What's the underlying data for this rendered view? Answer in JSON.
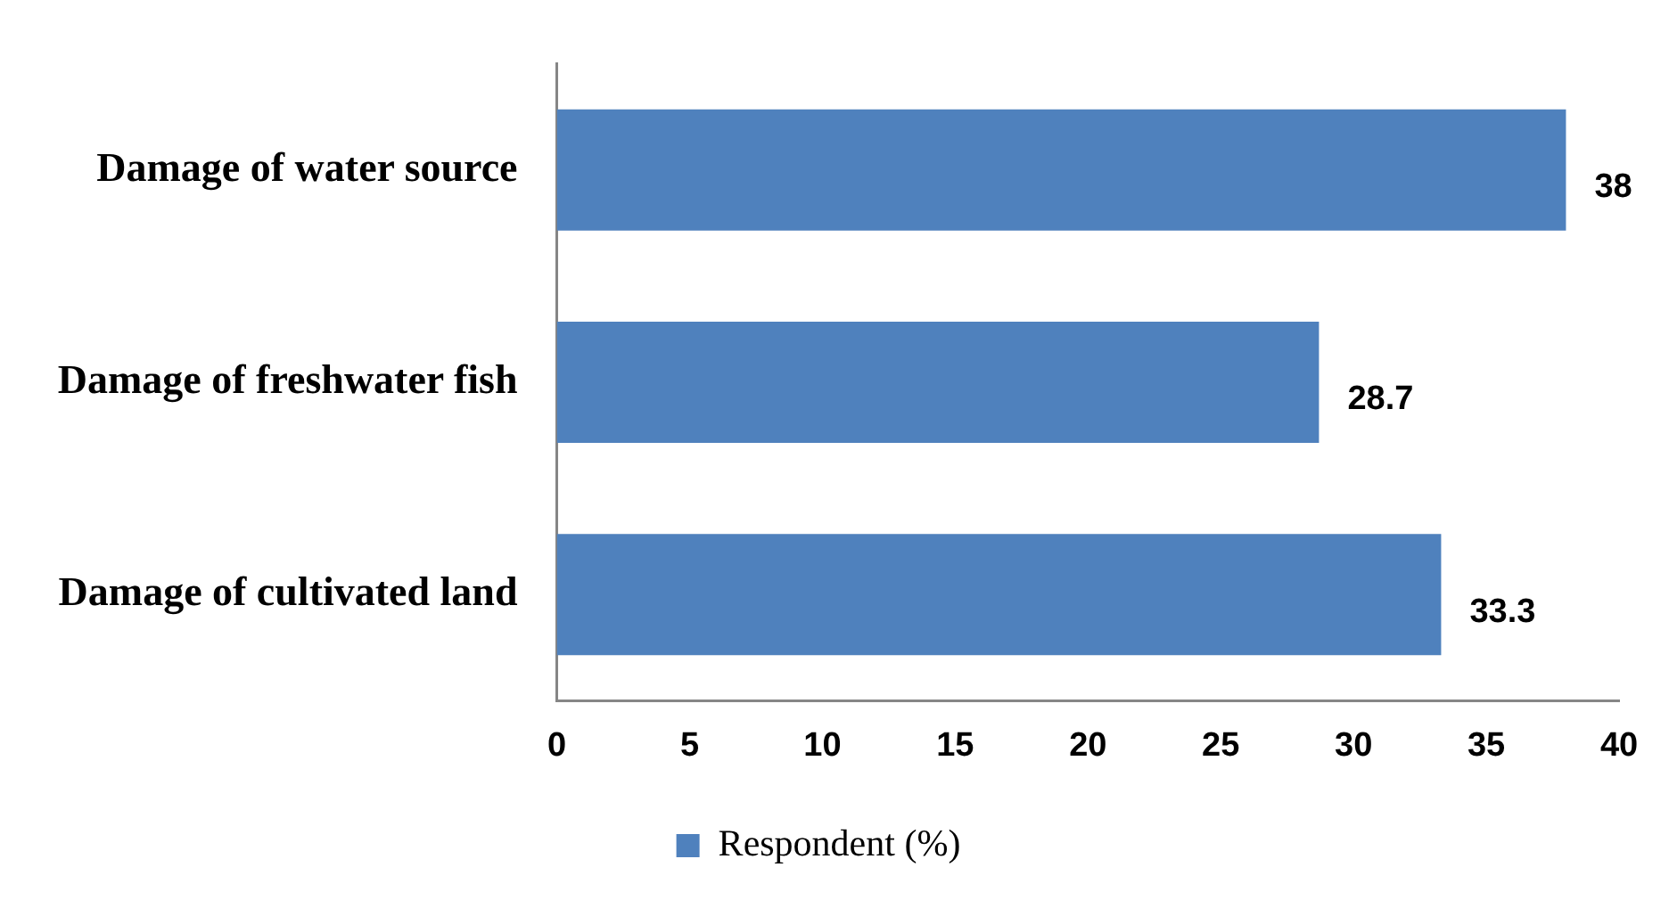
{
  "chart_data": {
    "type": "bar",
    "orientation": "horizontal",
    "categories": [
      "Damage of water source",
      "Damage of freshwater fish",
      "Damage of cultivated land"
    ],
    "series": [
      {
        "name": "Respondent (%)",
        "color": "#4f81bd",
        "values": [
          38,
          28.7,
          33.3
        ]
      }
    ],
    "xlim": [
      0,
      40
    ],
    "xticks": [
      0,
      5,
      10,
      15,
      20,
      25,
      30,
      35,
      40
    ],
    "grid": false,
    "legend": "bottom",
    "data_labels": true
  }
}
